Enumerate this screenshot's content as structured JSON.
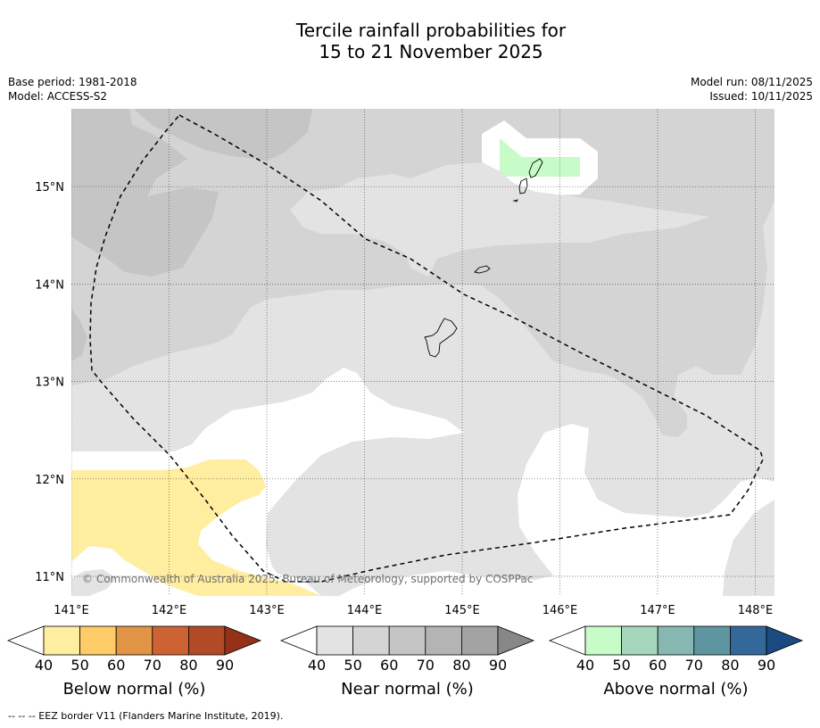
{
  "header": {
    "title_line1": "Tercile rainfall probabilities for",
    "title_line2": "15 to 21 November 2025",
    "base_period": "Base period: 1981-2018",
    "model": "Model: ACCESS-S2",
    "model_run": "Model run: 08/11/2025",
    "issued": "Issued: 10/11/2025"
  },
  "map": {
    "lon_range": [
      141.0,
      148.2
    ],
    "lat_range": [
      10.8,
      15.8
    ],
    "lon_ticks": [
      141,
      142,
      143,
      144,
      145,
      146,
      147,
      148
    ],
    "lat_ticks": [
      11,
      12,
      13,
      14,
      15
    ],
    "lon_tick_labels": [
      "141°E",
      "142°E",
      "143°E",
      "144°E",
      "145°E",
      "146°E",
      "147°E",
      "148°E"
    ],
    "lat_tick_labels": [
      "11°N",
      "12°N",
      "13°N",
      "14°N",
      "15°N"
    ],
    "copyright": "© Commonwealth of Australia 2025, Bureau of Meteorology, supported by COSPPac",
    "colors": {
      "near_40": "#e3e3e3",
      "near_50": "#d4d4d4",
      "near_60": "#c5c5c5",
      "below_40": "#ffeda0",
      "above_40": "#c7fcc9",
      "background": "#ffffff"
    }
  },
  "colorbars": [
    {
      "title": "Below normal (%)",
      "ticks": [
        "40",
        "50",
        "60",
        "70",
        "80",
        "90"
      ],
      "colors": [
        "#ffeda0",
        "#fecb67",
        "#e09444",
        "#cd6332",
        "#b24b25",
        "#963119"
      ]
    },
    {
      "title": "Near normal (%)",
      "ticks": [
        "40",
        "50",
        "60",
        "70",
        "80",
        "90"
      ],
      "colors": [
        "#e3e3e3",
        "#d4d4d4",
        "#c5c5c5",
        "#b4b4b4",
        "#a3a3a3",
        "#878787"
      ]
    },
    {
      "title": "Above normal (%)",
      "ticks": [
        "40",
        "50",
        "60",
        "70",
        "80",
        "90"
      ],
      "colors": [
        "#c7fcc9",
        "#a6d7bd",
        "#86b8b1",
        "#5d96a1",
        "#34689a",
        "#1b4a80"
      ]
    }
  ],
  "footnote": "--  --  -- EEZ border V11 (Flanders Marine Institute, 2019)."
}
